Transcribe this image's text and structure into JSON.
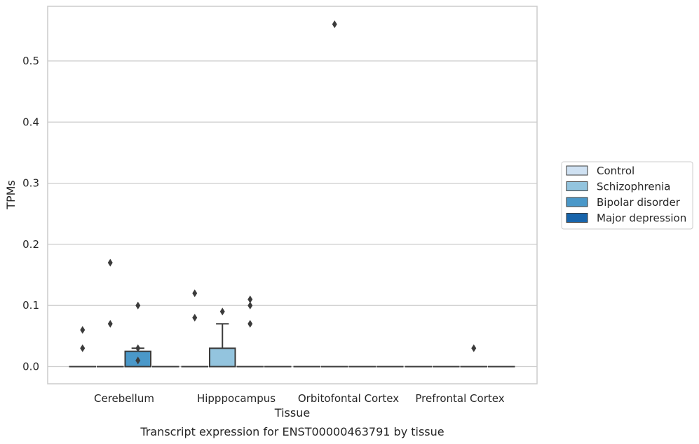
{
  "chart_data": {
    "type": "box",
    "xlabel": "Tissue",
    "ylabel": "TPMs",
    "caption": "Transcript expression for ENST00000463791 by tissue",
    "ylim": [
      -0.028,
      0.588
    ],
    "yticks": [
      0.0,
      0.1,
      0.2,
      0.3,
      0.4,
      0.5
    ],
    "ytick_labels": [
      "0.0",
      "0.1",
      "0.2",
      "0.3",
      "0.4",
      "0.5"
    ],
    "grid": "horizontal",
    "legend_position": "right",
    "categories": [
      "Cerebellum",
      "Hipppocampus",
      "Orbitofontal Cortex",
      "Prefrontal Cortex"
    ],
    "series": [
      {
        "name": "Control",
        "color": "#cfe1f2",
        "boxes": [
          {
            "q1": 0.0,
            "median": 0.0,
            "q3": 0.0,
            "whisker_low": 0.0,
            "whisker_high": 0.0,
            "outliers": [
              0.03,
              0.06
            ]
          },
          {
            "q1": 0.0,
            "median": 0.0,
            "q3": 0.0,
            "whisker_low": 0.0,
            "whisker_high": 0.0,
            "outliers": [
              0.08,
              0.12
            ]
          },
          {
            "q1": 0.0,
            "median": 0.0,
            "q3": 0.0,
            "whisker_low": 0.0,
            "whisker_high": 0.0,
            "outliers": []
          },
          {
            "q1": 0.0,
            "median": 0.0,
            "q3": 0.0,
            "whisker_low": 0.0,
            "whisker_high": 0.0,
            "outliers": []
          }
        ]
      },
      {
        "name": "Schizophrenia",
        "color": "#93c4de",
        "boxes": [
          {
            "q1": 0.0,
            "median": 0.0,
            "q3": 0.0,
            "whisker_low": 0.0,
            "whisker_high": 0.0,
            "outliers": [
              0.07,
              0.17
            ]
          },
          {
            "q1": 0.0,
            "median": 0.0,
            "q3": 0.03,
            "whisker_low": 0.0,
            "whisker_high": 0.07,
            "outliers": [
              0.09
            ]
          },
          {
            "q1": 0.0,
            "median": 0.0,
            "q3": 0.0,
            "whisker_low": 0.0,
            "whisker_high": 0.0,
            "outliers": [
              0.56
            ]
          },
          {
            "q1": 0.0,
            "median": 0.0,
            "q3": 0.0,
            "whisker_low": 0.0,
            "whisker_high": 0.0,
            "outliers": []
          }
        ]
      },
      {
        "name": "Bipolar disorder",
        "color": "#4a98c9",
        "boxes": [
          {
            "q1": 0.0,
            "median": 0.0,
            "q3": 0.025,
            "whisker_low": 0.0,
            "whisker_high": 0.03,
            "outliers": [
              0.01,
              0.03,
              0.1
            ]
          },
          {
            "q1": 0.0,
            "median": 0.0,
            "q3": 0.0,
            "whisker_low": 0.0,
            "whisker_high": 0.0,
            "outliers": [
              0.07,
              0.1,
              0.11
            ]
          },
          {
            "q1": 0.0,
            "median": 0.0,
            "q3": 0.0,
            "whisker_low": 0.0,
            "whisker_high": 0.0,
            "outliers": []
          },
          {
            "q1": 0.0,
            "median": 0.0,
            "q3": 0.0,
            "whisker_low": 0.0,
            "whisker_high": 0.0,
            "outliers": [
              0.03
            ]
          }
        ]
      },
      {
        "name": "Major depression",
        "color": "#1764ab",
        "boxes": [
          {
            "q1": 0.0,
            "median": 0.0,
            "q3": 0.0,
            "whisker_low": 0.0,
            "whisker_high": 0.0,
            "outliers": []
          },
          {
            "q1": 0.0,
            "median": 0.0,
            "q3": 0.0,
            "whisker_low": 0.0,
            "whisker_high": 0.0,
            "outliers": []
          },
          {
            "q1": 0.0,
            "median": 0.0,
            "q3": 0.0,
            "whisker_low": 0.0,
            "whisker_high": 0.0,
            "outliers": []
          },
          {
            "q1": 0.0,
            "median": 0.0,
            "q3": 0.0,
            "whisker_low": 0.0,
            "whisker_high": 0.0,
            "outliers": []
          }
        ]
      }
    ],
    "style": {
      "grid_color": "#cccccc",
      "frame_color": "#cccccc",
      "line_color": "#3b3b3b",
      "outlier_color": "#3b3b3b"
    }
  }
}
